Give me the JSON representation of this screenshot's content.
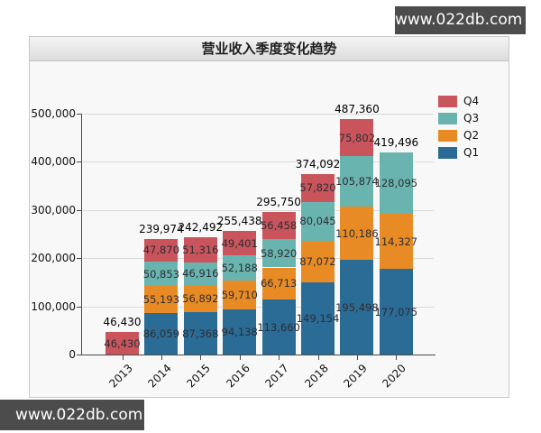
{
  "watermarks": {
    "top": "www.022db.com",
    "bottom": "www.022db.com"
  },
  "panel": {
    "title": "营业收入季度变化趋势"
  },
  "chart_data": {
    "type": "bar",
    "stacked": true,
    "title": "营业收入季度变化趋势",
    "categories": [
      "2013",
      "2014",
      "2015",
      "2016",
      "2017",
      "2018",
      "2019",
      "2020"
    ],
    "series": [
      {
        "name": "Q1",
        "color": "#2a6c95",
        "values": [
          null,
          86059,
          87368,
          94138,
          113660,
          149154,
          195498,
          177075
        ]
      },
      {
        "name": "Q2",
        "color": "#e88b25",
        "values": [
          null,
          55193,
          56892,
          59710,
          66713,
          87072,
          110186,
          114327
        ]
      },
      {
        "name": "Q3",
        "color": "#6ab4b0",
        "values": [
          null,
          50853,
          46916,
          52188,
          58920,
          80045,
          105874,
          128095
        ]
      },
      {
        "name": "Q4",
        "color": "#c9545c",
        "values": [
          46430,
          47870,
          51316,
          49401,
          56458,
          57820,
          75802,
          null
        ]
      }
    ],
    "stack_order": [
      "Q1",
      "Q2",
      "Q3",
      "Q4"
    ],
    "legend_order": [
      "Q4",
      "Q3",
      "Q2",
      "Q1"
    ],
    "totals": [
      46430,
      239974,
      242492,
      255438,
      295750,
      374092,
      487360,
      419496
    ],
    "y_ticks": [
      0,
      100000,
      200000,
      300000,
      400000,
      500000
    ],
    "ylim": [
      0,
      500000
    ],
    "xlabel": "",
    "ylabel": "",
    "grid": true,
    "legend_position": "top-right"
  }
}
